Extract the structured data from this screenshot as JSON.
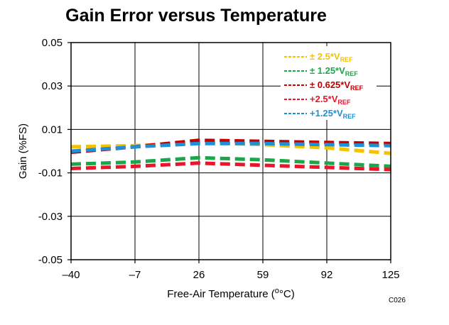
{
  "chart_data": {
    "type": "line",
    "title": "Gain Error versus Temperature",
    "xlabel": "Free-Air Temperature (",
    "xlabel_unit": "°C)",
    "ylabel": "Gain (%FS)",
    "figure_code": "C026",
    "xlim": [
      -40,
      125
    ],
    "ylim": [
      -0.05,
      0.05
    ],
    "x_ticks": [
      "–40",
      "–7",
      "26",
      "59",
      "92",
      "125"
    ],
    "x_tick_values": [
      -40,
      -7,
      26,
      59,
      92,
      125
    ],
    "y_ticks": [
      "0.05",
      "0.03",
      "0.01",
      "-0.01",
      "-0.03",
      "-0.05"
    ],
    "y_tick_values": [
      0.05,
      0.03,
      0.01,
      -0.01,
      -0.03,
      -0.05
    ],
    "grid": true,
    "legend_position": "top-right",
    "x": [
      -40,
      -7,
      26,
      59,
      92,
      125
    ],
    "series": [
      {
        "name": "± 2.5*V",
        "sub": "REF",
        "color": "#F5C200",
        "values": [
          0.002,
          0.0025,
          0.004,
          0.003,
          0.0015,
          -0.001
        ]
      },
      {
        "name": "± 1.25*V",
        "sub": "REF",
        "color": "#1DA54A",
        "values": [
          -0.006,
          -0.005,
          -0.003,
          -0.004,
          -0.0055,
          -0.007
        ]
      },
      {
        "name": "± 0.625*V",
        "sub": "REF",
        "color": "#C00000",
        "values": [
          -0.0005,
          0.002,
          0.005,
          0.0045,
          0.004,
          0.0035
        ]
      },
      {
        "name": "+2.5*V",
        "sub": "REF",
        "color": "#E8152B",
        "values": [
          -0.008,
          -0.007,
          -0.0055,
          -0.0065,
          -0.0075,
          -0.0085
        ]
      },
      {
        "name": "+1.25*V",
        "sub": "REF",
        "color": "#1E90D6",
        "values": [
          0.0,
          0.002,
          0.0035,
          0.0035,
          0.003,
          0.0025
        ]
      }
    ]
  }
}
